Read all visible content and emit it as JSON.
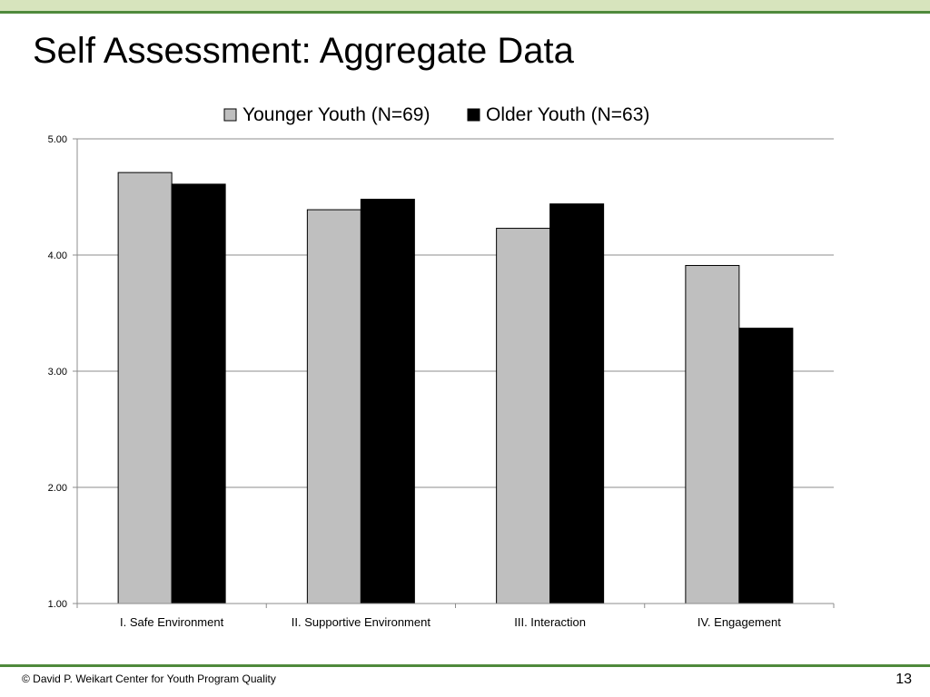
{
  "slide": {
    "title": "Self Assessment: Aggregate Data",
    "footer": "© David P. Weikart Center for Youth Program Quality",
    "page_number": "13"
  },
  "colors": {
    "top_band": "#d7e4bd",
    "accent_line": "#4f8a3c",
    "series_colors": [
      "#bfbfbf",
      "#000000"
    ],
    "gridline": "#8c8c8c"
  },
  "chart_data": {
    "type": "bar",
    "title": "",
    "xlabel": "",
    "ylabel": "",
    "categories": [
      "I. Safe Environment",
      "II. Supportive Environment",
      "III. Interaction",
      "IV. Engagement"
    ],
    "series": [
      {
        "name": "Younger Youth (N=69)",
        "values": [
          4.71,
          4.39,
          4.23,
          3.91
        ]
      },
      {
        "name": "Older Youth (N=63)",
        "values": [
          4.61,
          4.48,
          4.44,
          3.37
        ]
      }
    ],
    "ylim": [
      1.0,
      5.0
    ],
    "yticks": [
      "1.00",
      "2.00",
      "3.00",
      "4.00",
      "5.00"
    ],
    "grid": true,
    "legend": "top-center"
  }
}
